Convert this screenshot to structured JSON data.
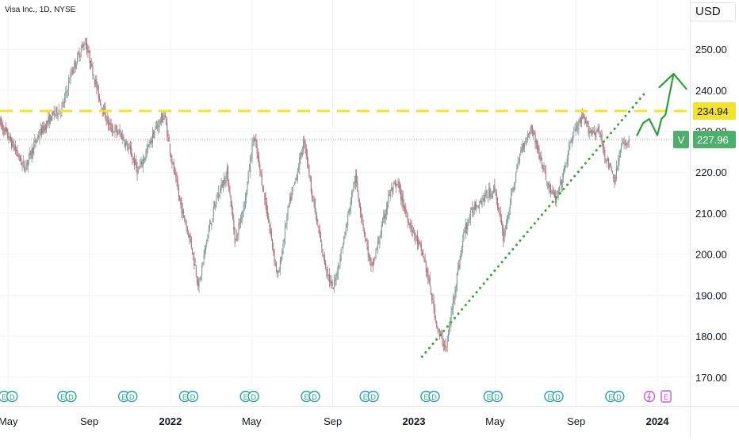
{
  "header": {
    "symbol_title": "Visa Inc., 1D, NYSE",
    "currency": "USD"
  },
  "chart_data": {
    "type": "candlestick",
    "title": "Visa Inc., 1D, NYSE",
    "ylim": [
      163,
      262
    ],
    "y_ticks": [
      170,
      180,
      190,
      200,
      210,
      220,
      230,
      240,
      250
    ],
    "y_tick_labels": [
      "170.00",
      "180.00",
      "190.00",
      "200.00",
      "210.00",
      "220.00",
      "230.00",
      "240.00",
      "250.00"
    ],
    "x_ticks": [
      {
        "label": "May",
        "date": "2021-05-01",
        "bold": false
      },
      {
        "label": "Sep",
        "date": "2021-09-01",
        "bold": false
      },
      {
        "label": "2022",
        "date": "2022-01-01",
        "bold": true
      },
      {
        "label": "May",
        "date": "2022-05-01",
        "bold": false
      },
      {
        "label": "Sep",
        "date": "2022-09-01",
        "bold": false
      },
      {
        "label": "2023",
        "date": "2023-01-01",
        "bold": true
      },
      {
        "label": "May",
        "date": "2023-05-01",
        "bold": false
      },
      {
        "label": "Sep",
        "date": "2023-09-01",
        "bold": false
      },
      {
        "label": "2024",
        "date": "2024-01-01",
        "bold": true
      }
    ],
    "x_range_months": [
      -0.4,
      33.6
    ],
    "price_path": [
      [
        -0.4,
        232
      ],
      [
        0.3,
        226
      ],
      [
        0.8,
        221
      ],
      [
        1.5,
        229
      ],
      [
        2.2,
        234
      ],
      [
        2.7,
        236
      ],
      [
        3.1,
        244
      ],
      [
        3.5,
        249
      ],
      [
        3.8,
        252
      ],
      [
        4.1,
        246
      ],
      [
        4.5,
        238
      ],
      [
        5,
        231
      ],
      [
        5.6,
        229
      ],
      [
        6.1,
        224
      ],
      [
        6.4,
        220
      ],
      [
        6.9,
        226
      ],
      [
        7.3,
        231
      ],
      [
        7.7,
        234
      ],
      [
        8.1,
        222
      ],
      [
        8.5,
        212
      ],
      [
        9.0,
        203
      ],
      [
        9.4,
        192
      ],
      [
        9.8,
        204
      ],
      [
        10.3,
        214
      ],
      [
        10.8,
        220
      ],
      [
        11.2,
        203
      ],
      [
        11.7,
        214
      ],
      [
        12.1,
        229
      ],
      [
        12.5,
        218
      ],
      [
        12.9,
        206
      ],
      [
        13.3,
        194
      ],
      [
        13.8,
        211
      ],
      [
        14.2,
        219
      ],
      [
        14.6,
        228
      ],
      [
        15.0,
        214
      ],
      [
        15.5,
        200
      ],
      [
        16.0,
        191
      ],
      [
        16.6,
        205
      ],
      [
        17.1,
        219
      ],
      [
        17.5,
        207
      ],
      [
        17.9,
        196
      ],
      [
        18.4,
        206
      ],
      [
        18.8,
        215
      ],
      [
        19.2,
        217
      ],
      [
        19.6,
        210
      ],
      [
        20.0,
        205
      ],
      [
        20.5,
        199
      ],
      [
        20.9,
        189
      ],
      [
        21.2,
        181
      ],
      [
        21.6,
        177
      ],
      [
        22.0,
        191
      ],
      [
        22.5,
        206
      ],
      [
        23.0,
        212
      ],
      [
        23.5,
        214
      ],
      [
        24.0,
        216
      ],
      [
        24.4,
        204
      ],
      [
        24.8,
        214
      ],
      [
        25.3,
        226
      ],
      [
        25.8,
        231
      ],
      [
        26.2,
        224
      ],
      [
        26.6,
        217
      ],
      [
        27.0,
        213
      ],
      [
        27.4,
        220
      ],
      [
        27.8,
        229
      ],
      [
        28.3,
        233
      ],
      [
        28.7,
        230
      ],
      [
        29.1,
        230
      ],
      [
        29.5,
        223
      ],
      [
        29.9,
        218
      ],
      [
        30.2,
        226
      ],
      [
        30.6,
        228
      ]
    ],
    "annotations": {
      "resistance_level": 234.94,
      "resistance_label": "234.94",
      "last_price": 227.96,
      "last_price_label": "227.96",
      "last_price_symbol": "V",
      "trendline_from": {
        "month": 20.4,
        "price": 175
      },
      "trendline_to": {
        "month": 31.5,
        "price": 240
      },
      "projection_path": [
        [
          31.0,
          229
        ],
        [
          31.3,
          232
        ],
        [
          31.6,
          233
        ],
        [
          31.8,
          231
        ],
        [
          32.0,
          229
        ],
        [
          32.2,
          233
        ],
        [
          32.4,
          234
        ],
        [
          32.6,
          239
        ],
        [
          32.8,
          244
        ]
      ],
      "earnings_markers": [
        0.0,
        2.9,
        5.9,
        8.9,
        11.9,
        14.9,
        17.8,
        20.8,
        23.9,
        26.9,
        29.9
      ]
    }
  }
}
